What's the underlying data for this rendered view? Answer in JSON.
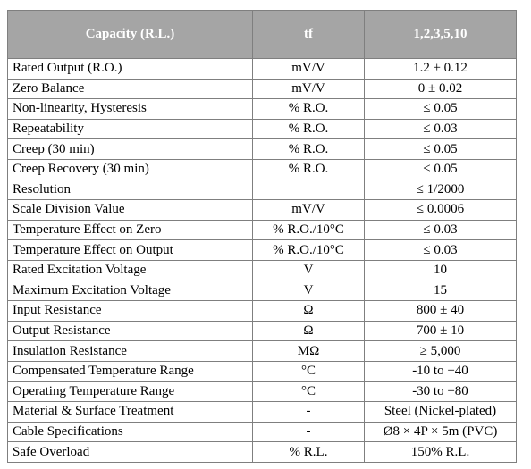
{
  "table": {
    "header": [
      "Capacity (R.L.)",
      "tf",
      "1,2,3,5,10"
    ],
    "rows": [
      [
        "Rated Output (R.O.)",
        "mV/V",
        "1.2 ± 0.12"
      ],
      [
        "Zero Balance",
        "mV/V",
        "0 ± 0.02"
      ],
      [
        "Non-linearity, Hysteresis",
        "% R.O.",
        "≤ 0.05"
      ],
      [
        "Repeatability",
        "% R.O.",
        "≤ 0.03"
      ],
      [
        "Creep (30 min)",
        "% R.O.",
        "≤ 0.05"
      ],
      [
        "Creep Recovery (30 min)",
        "% R.O.",
        "≤ 0.05"
      ],
      [
        "Resolution",
        null,
        "≤ 1/2000"
      ],
      [
        "Scale Division Value",
        "mV/V",
        "≤ 0.0006"
      ],
      [
        "Temperature Effect on Zero",
        "% R.O./10°C",
        "≤ 0.03"
      ],
      [
        "Temperature Effect on Output",
        "% R.O./10°C",
        "≤ 0.03"
      ],
      [
        "Rated Excitation Voltage",
        "V",
        "10"
      ],
      [
        "Maximum Excitation Voltage",
        "V",
        "15"
      ],
      [
        "Input Resistance",
        "Ω",
        "800 ± 40"
      ],
      [
        "Output Resistance",
        "Ω",
        "700 ± 10"
      ],
      [
        "Insulation Resistance",
        "MΩ",
        "≥ 5,000"
      ],
      [
        "Compensated Temperature Range",
        "°C",
        "-10 to +40"
      ],
      [
        "Operating Temperature Range",
        "°C",
        "-30 to +80"
      ],
      [
        "Material & Surface Treatment",
        "-",
        "Steel (Nickel-plated)"
      ],
      [
        "Cable Specifications",
        "-",
        "Ø8 × 4P × 5m (PVC)"
      ],
      [
        "Safe Overload",
        "% R.L.",
        "150% R.L."
      ]
    ]
  }
}
